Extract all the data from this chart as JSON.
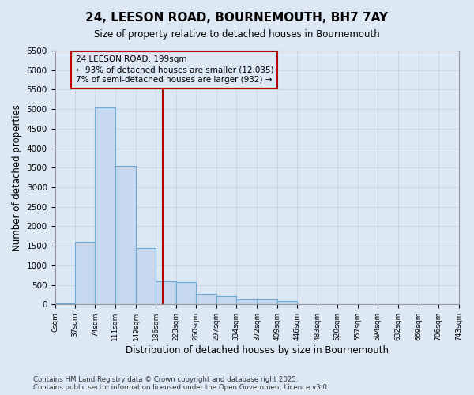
{
  "title": "24, LEESON ROAD, BOURNEMOUTH, BH7 7AY",
  "subtitle": "Size of property relative to detached houses in Bournemouth",
  "xlabel": "Distribution of detached houses by size in Bournemouth",
  "ylabel": "Number of detached properties",
  "bin_edges": [
    0,
    37,
    74,
    111,
    149,
    186,
    223,
    260,
    297,
    334,
    372,
    409,
    446,
    483,
    520,
    557,
    594,
    632,
    669,
    706,
    743
  ],
  "bar_heights": [
    20,
    1600,
    5050,
    3550,
    1450,
    600,
    580,
    280,
    200,
    130,
    130,
    80,
    0,
    0,
    0,
    0,
    0,
    0,
    0,
    0
  ],
  "bar_color": "#c5d8f0",
  "bar_edge_color": "#6aaad4",
  "vline_x": 199,
  "vline_color": "#aa0000",
  "annotation_line1": "24 LEESON ROAD: 199sqm",
  "annotation_line2": "← 93% of detached houses are smaller (12,035)",
  "annotation_line3": "7% of semi-detached houses are larger (932) →",
  "annotation_box_color": "#bb0000",
  "ylim": [
    0,
    6500
  ],
  "yticks": [
    0,
    500,
    1000,
    1500,
    2000,
    2500,
    3000,
    3500,
    4000,
    4500,
    5000,
    5500,
    6000,
    6500
  ],
  "grid_color": "#c8d4e8",
  "bg_color": "#dce8f4",
  "title_color": "#000000",
  "footer_line1": "Contains HM Land Registry data © Crown copyright and database right 2025.",
  "footer_line2": "Contains public sector information licensed under the Open Government Licence v3.0."
}
